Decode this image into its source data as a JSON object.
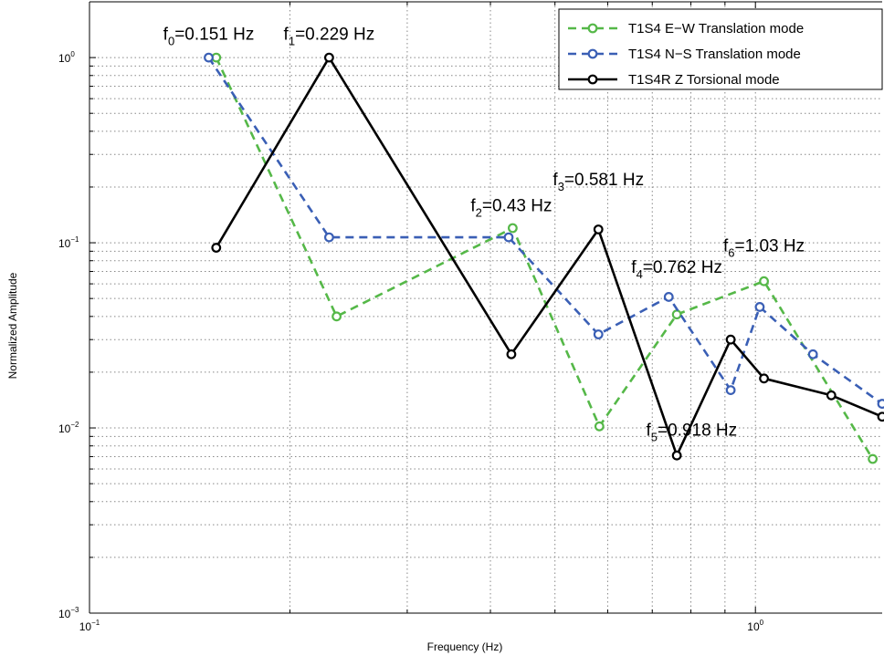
{
  "chart_data": {
    "type": "line",
    "xscale": "log",
    "yscale": "log",
    "xlim": [
      0.1,
      1.55
    ],
    "ylim": [
      0.001,
      2
    ],
    "xlabel": "Frequency (Hz)",
    "ylabel": "Normalized Amplitude",
    "grid": true,
    "legend_position": "top-right",
    "x_ticks": [
      {
        "value": 0.1,
        "base": "10",
        "exp": "−1"
      },
      {
        "value": 1,
        "base": "10",
        "exp": "0"
      }
    ],
    "y_ticks": [
      {
        "value": 1,
        "base": "10",
        "exp": "0"
      },
      {
        "value": 0.1,
        "base": "10",
        "exp": "−1"
      },
      {
        "value": 0.01,
        "base": "10",
        "exp": "−2"
      },
      {
        "value": 0.001,
        "base": "10",
        "exp": "−3"
      }
    ],
    "series": [
      {
        "name": "T1S4 E−W Translation mode",
        "color": "#55b848",
        "dash": "dashed",
        "x": [
          0.155,
          0.235,
          0.432,
          0.583,
          0.762,
          1.03,
          1.5
        ],
        "y": [
          1.0,
          0.04,
          0.12,
          0.0102,
          0.041,
          0.062,
          0.0068
        ]
      },
      {
        "name": "T1S4 N−S Translation mode",
        "color": "#3a5fb5",
        "dash": "dashed",
        "x": [
          0.151,
          0.229,
          0.426,
          0.581,
          0.741,
          0.918,
          1.015,
          1.22,
          1.55
        ],
        "y": [
          1.0,
          0.107,
          0.107,
          0.032,
          0.051,
          0.016,
          0.045,
          0.025,
          0.0135
        ]
      },
      {
        "name": "T1S4R Z Torsional mode",
        "color": "#000000",
        "dash": "solid",
        "x": [
          0.155,
          0.229,
          0.43,
          0.581,
          0.762,
          0.918,
          1.03,
          1.3,
          1.55
        ],
        "y": [
          0.094,
          1.0,
          0.025,
          0.118,
          0.0071,
          0.03,
          0.0185,
          0.015,
          0.0115
        ]
      }
    ],
    "annotations": [
      {
        "base": "f",
        "sub": "0",
        "text": "=0.151 Hz",
        "x": 0.151,
        "y": 1.25
      },
      {
        "base": "f",
        "sub": "1",
        "text": "=0.229 Hz",
        "x": 0.229,
        "y": 1.25
      },
      {
        "base": "f",
        "sub": "2",
        "text": "=0.43 Hz",
        "x": 0.43,
        "y": 0.148
      },
      {
        "base": "f",
        "sub": "3",
        "text": "=0.581 Hz",
        "x": 0.581,
        "y": 0.205
      },
      {
        "base": "f",
        "sub": "4",
        "text": "=0.762 Hz",
        "x": 0.762,
        "y": 0.069
      },
      {
        "base": "f",
        "sub": "5",
        "text": "=0.918 Hz",
        "x": 0.802,
        "y": 0.0091
      },
      {
        "base": "f",
        "sub": "6",
        "text": "=1.03 Hz",
        "x": 1.03,
        "y": 0.09
      }
    ]
  }
}
